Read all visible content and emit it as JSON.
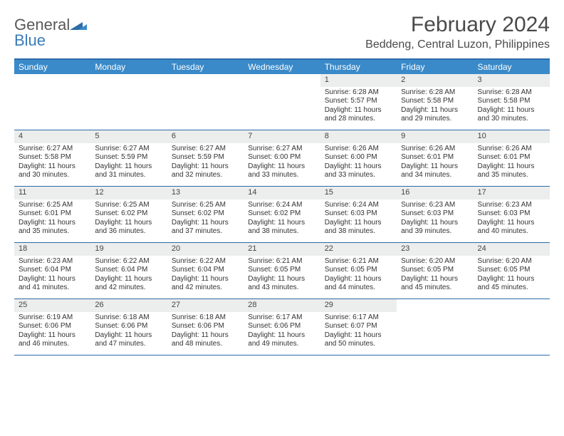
{
  "logo": {
    "text_general": "General",
    "text_blue": "Blue"
  },
  "title": "February 2024",
  "location": "Beddeng, Central Luzon, Philippines",
  "colors": {
    "header_bg": "#3a8ac9",
    "border": "#2c6ca8",
    "daynum_bg": "#eceded",
    "logo_blue": "#3a7ab8",
    "text_gray": "#4a4a4a"
  },
  "weekdays": [
    "Sunday",
    "Monday",
    "Tuesday",
    "Wednesday",
    "Thursday",
    "Friday",
    "Saturday"
  ],
  "weeks": [
    [
      {
        "empty": true
      },
      {
        "empty": true
      },
      {
        "empty": true
      },
      {
        "empty": true
      },
      {
        "n": "1",
        "sr": "Sunrise: 6:28 AM",
        "ss": "Sunset: 5:57 PM",
        "d1": "Daylight: 11 hours",
        "d2": "and 28 minutes."
      },
      {
        "n": "2",
        "sr": "Sunrise: 6:28 AM",
        "ss": "Sunset: 5:58 PM",
        "d1": "Daylight: 11 hours",
        "d2": "and 29 minutes."
      },
      {
        "n": "3",
        "sr": "Sunrise: 6:28 AM",
        "ss": "Sunset: 5:58 PM",
        "d1": "Daylight: 11 hours",
        "d2": "and 30 minutes."
      }
    ],
    [
      {
        "n": "4",
        "sr": "Sunrise: 6:27 AM",
        "ss": "Sunset: 5:58 PM",
        "d1": "Daylight: 11 hours",
        "d2": "and 30 minutes."
      },
      {
        "n": "5",
        "sr": "Sunrise: 6:27 AM",
        "ss": "Sunset: 5:59 PM",
        "d1": "Daylight: 11 hours",
        "d2": "and 31 minutes."
      },
      {
        "n": "6",
        "sr": "Sunrise: 6:27 AM",
        "ss": "Sunset: 5:59 PM",
        "d1": "Daylight: 11 hours",
        "d2": "and 32 minutes."
      },
      {
        "n": "7",
        "sr": "Sunrise: 6:27 AM",
        "ss": "Sunset: 6:00 PM",
        "d1": "Daylight: 11 hours",
        "d2": "and 33 minutes."
      },
      {
        "n": "8",
        "sr": "Sunrise: 6:26 AM",
        "ss": "Sunset: 6:00 PM",
        "d1": "Daylight: 11 hours",
        "d2": "and 33 minutes."
      },
      {
        "n": "9",
        "sr": "Sunrise: 6:26 AM",
        "ss": "Sunset: 6:01 PM",
        "d1": "Daylight: 11 hours",
        "d2": "and 34 minutes."
      },
      {
        "n": "10",
        "sr": "Sunrise: 6:26 AM",
        "ss": "Sunset: 6:01 PM",
        "d1": "Daylight: 11 hours",
        "d2": "and 35 minutes."
      }
    ],
    [
      {
        "n": "11",
        "sr": "Sunrise: 6:25 AM",
        "ss": "Sunset: 6:01 PM",
        "d1": "Daylight: 11 hours",
        "d2": "and 35 minutes."
      },
      {
        "n": "12",
        "sr": "Sunrise: 6:25 AM",
        "ss": "Sunset: 6:02 PM",
        "d1": "Daylight: 11 hours",
        "d2": "and 36 minutes."
      },
      {
        "n": "13",
        "sr": "Sunrise: 6:25 AM",
        "ss": "Sunset: 6:02 PM",
        "d1": "Daylight: 11 hours",
        "d2": "and 37 minutes."
      },
      {
        "n": "14",
        "sr": "Sunrise: 6:24 AM",
        "ss": "Sunset: 6:02 PM",
        "d1": "Daylight: 11 hours",
        "d2": "and 38 minutes."
      },
      {
        "n": "15",
        "sr": "Sunrise: 6:24 AM",
        "ss": "Sunset: 6:03 PM",
        "d1": "Daylight: 11 hours",
        "d2": "and 38 minutes."
      },
      {
        "n": "16",
        "sr": "Sunrise: 6:23 AM",
        "ss": "Sunset: 6:03 PM",
        "d1": "Daylight: 11 hours",
        "d2": "and 39 minutes."
      },
      {
        "n": "17",
        "sr": "Sunrise: 6:23 AM",
        "ss": "Sunset: 6:03 PM",
        "d1": "Daylight: 11 hours",
        "d2": "and 40 minutes."
      }
    ],
    [
      {
        "n": "18",
        "sr": "Sunrise: 6:23 AM",
        "ss": "Sunset: 6:04 PM",
        "d1": "Daylight: 11 hours",
        "d2": "and 41 minutes."
      },
      {
        "n": "19",
        "sr": "Sunrise: 6:22 AM",
        "ss": "Sunset: 6:04 PM",
        "d1": "Daylight: 11 hours",
        "d2": "and 42 minutes."
      },
      {
        "n": "20",
        "sr": "Sunrise: 6:22 AM",
        "ss": "Sunset: 6:04 PM",
        "d1": "Daylight: 11 hours",
        "d2": "and 42 minutes."
      },
      {
        "n": "21",
        "sr": "Sunrise: 6:21 AM",
        "ss": "Sunset: 6:05 PM",
        "d1": "Daylight: 11 hours",
        "d2": "and 43 minutes."
      },
      {
        "n": "22",
        "sr": "Sunrise: 6:21 AM",
        "ss": "Sunset: 6:05 PM",
        "d1": "Daylight: 11 hours",
        "d2": "and 44 minutes."
      },
      {
        "n": "23",
        "sr": "Sunrise: 6:20 AM",
        "ss": "Sunset: 6:05 PM",
        "d1": "Daylight: 11 hours",
        "d2": "and 45 minutes."
      },
      {
        "n": "24",
        "sr": "Sunrise: 6:20 AM",
        "ss": "Sunset: 6:05 PM",
        "d1": "Daylight: 11 hours",
        "d2": "and 45 minutes."
      }
    ],
    [
      {
        "n": "25",
        "sr": "Sunrise: 6:19 AM",
        "ss": "Sunset: 6:06 PM",
        "d1": "Daylight: 11 hours",
        "d2": "and 46 minutes."
      },
      {
        "n": "26",
        "sr": "Sunrise: 6:18 AM",
        "ss": "Sunset: 6:06 PM",
        "d1": "Daylight: 11 hours",
        "d2": "and 47 minutes."
      },
      {
        "n": "27",
        "sr": "Sunrise: 6:18 AM",
        "ss": "Sunset: 6:06 PM",
        "d1": "Daylight: 11 hours",
        "d2": "and 48 minutes."
      },
      {
        "n": "28",
        "sr": "Sunrise: 6:17 AM",
        "ss": "Sunset: 6:06 PM",
        "d1": "Daylight: 11 hours",
        "d2": "and 49 minutes."
      },
      {
        "n": "29",
        "sr": "Sunrise: 6:17 AM",
        "ss": "Sunset: 6:07 PM",
        "d1": "Daylight: 11 hours",
        "d2": "and 50 minutes."
      },
      {
        "empty": true
      },
      {
        "empty": true
      }
    ]
  ]
}
